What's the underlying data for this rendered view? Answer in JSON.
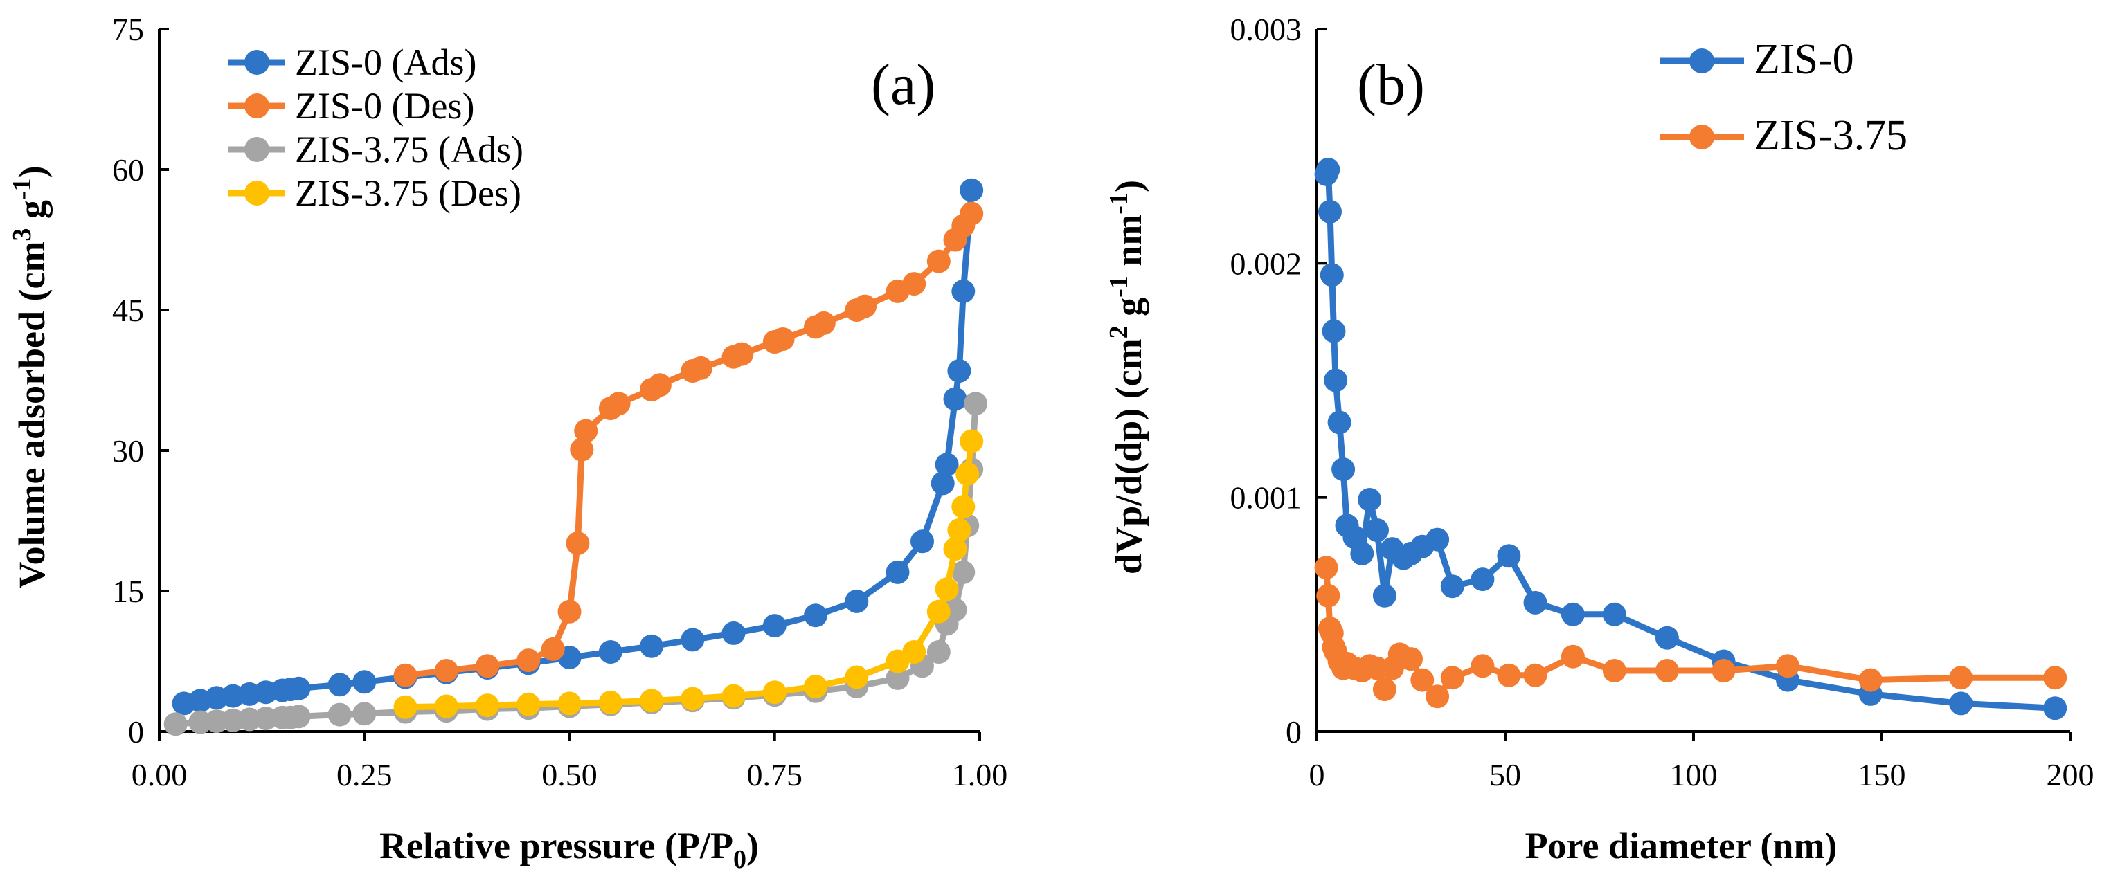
{
  "chart_data": [
    {
      "type": "line",
      "panel_label": "(a)",
      "xlabel": {
        "main": "Relative pressure (P/P",
        "sub": "0",
        "end": ")"
      },
      "ylabel": {
        "main": "Volume adsorbed (cm",
        "sup1": "3",
        "mid": " g",
        "sup2": "-1",
        "end": ")"
      },
      "xlim": [
        0,
        1
      ],
      "ylim": [
        0,
        75
      ],
      "xticks": [
        "0.00",
        "0.25",
        "0.50",
        "0.75",
        "1.00"
      ],
      "yticks": [
        "0",
        "15",
        "30",
        "45",
        "60",
        "75"
      ],
      "legend_position": "top-left",
      "series": [
        {
          "name": "ZIS-0 (Ads)",
          "color": "#2e75c8",
          "x": [
            0.03,
            0.05,
            0.07,
            0.09,
            0.11,
            0.13,
            0.15,
            0.16,
            0.17,
            0.22,
            0.25,
            0.3,
            0.35,
            0.4,
            0.45,
            0.5,
            0.55,
            0.6,
            0.65,
            0.7,
            0.75,
            0.8,
            0.85,
            0.9,
            0.93,
            0.955,
            0.96,
            0.97,
            0.975,
            0.98,
            0.99
          ],
          "y": [
            3.0,
            3.3,
            3.6,
            3.8,
            4.0,
            4.2,
            4.4,
            4.5,
            4.6,
            5.0,
            5.3,
            5.8,
            6.3,
            6.8,
            7.3,
            7.9,
            8.5,
            9.1,
            9.8,
            10.5,
            11.3,
            12.4,
            13.9,
            17.0,
            20.3,
            26.5,
            28.5,
            35.5,
            38.5,
            47.0,
            57.8
          ]
        },
        {
          "name": "ZIS-0 (Des)",
          "color": "#f47c30",
          "x": [
            0.3,
            0.35,
            0.4,
            0.45,
            0.48,
            0.5,
            0.51,
            0.515,
            0.52,
            0.55,
            0.56,
            0.6,
            0.61,
            0.65,
            0.66,
            0.7,
            0.71,
            0.75,
            0.76,
            0.8,
            0.81,
            0.85,
            0.86,
            0.9,
            0.92,
            0.95,
            0.97,
            0.98,
            0.99
          ],
          "y": [
            6.0,
            6.5,
            7.0,
            7.6,
            8.8,
            12.8,
            20.1,
            30.1,
            32.1,
            34.5,
            35.0,
            36.5,
            37.0,
            38.5,
            38.8,
            40.0,
            40.3,
            41.6,
            41.9,
            43.2,
            43.6,
            45.0,
            45.4,
            47.0,
            47.8,
            50.2,
            52.5,
            54.0,
            55.3
          ]
        },
        {
          "name": "ZIS-3.75 (Ads)",
          "color": "#a5a5a5",
          "x": [
            0.02,
            0.05,
            0.07,
            0.09,
            0.11,
            0.13,
            0.15,
            0.16,
            0.17,
            0.22,
            0.25,
            0.3,
            0.35,
            0.4,
            0.45,
            0.5,
            0.55,
            0.6,
            0.65,
            0.7,
            0.75,
            0.8,
            0.85,
            0.9,
            0.93,
            0.95,
            0.96,
            0.97,
            0.98,
            0.985,
            0.99,
            0.995
          ],
          "y": [
            0.8,
            1.0,
            1.1,
            1.2,
            1.3,
            1.4,
            1.5,
            1.5,
            1.6,
            1.8,
            1.9,
            2.1,
            2.2,
            2.4,
            2.5,
            2.7,
            2.9,
            3.1,
            3.3,
            3.6,
            3.9,
            4.3,
            4.8,
            5.7,
            7.0,
            8.5,
            11.5,
            13.0,
            17.0,
            22.0,
            28.0,
            35.0
          ]
        },
        {
          "name": "ZIS-3.75 (Des)",
          "color": "#ffc000",
          "x": [
            0.3,
            0.35,
            0.4,
            0.45,
            0.5,
            0.55,
            0.6,
            0.65,
            0.7,
            0.75,
            0.8,
            0.85,
            0.9,
            0.92,
            0.95,
            0.96,
            0.97,
            0.975,
            0.98,
            0.985,
            0.99
          ],
          "y": [
            2.6,
            2.7,
            2.8,
            2.9,
            3.0,
            3.1,
            3.3,
            3.5,
            3.8,
            4.2,
            4.8,
            5.8,
            7.5,
            8.5,
            12.8,
            15.2,
            19.5,
            21.5,
            24.0,
            27.5,
            31.0
          ]
        }
      ]
    },
    {
      "type": "line",
      "panel_label": "(b)",
      "xlabel": {
        "main": "Pore diameter (nm)"
      },
      "ylabel": {
        "main": "dVp/d(dp) (cm",
        "sup1": "2",
        "mid": " g",
        "sup2": "-1",
        "mid2": " nm",
        "sup3": "-1",
        "end": ")"
      },
      "xlim": [
        0,
        200
      ],
      "ylim": [
        0,
        0.003
      ],
      "xticks": [
        "0",
        "50",
        "100",
        "150",
        "200"
      ],
      "yticks": [
        "0",
        "0.001",
        "0.002",
        "0.003"
      ],
      "legend_position": "top-right",
      "series": [
        {
          "name": "ZIS-0",
          "color": "#2e75c8",
          "x": [
            2.5,
            3.0,
            3.5,
            4.0,
            4.5,
            5.0,
            6.0,
            7.0,
            8.0,
            10.0,
            12.0,
            14.0,
            16.0,
            18.0,
            20.0,
            23.0,
            25.0,
            28.0,
            32.0,
            36.0,
            44.0,
            51.0,
            58.0,
            68.0,
            79.0,
            93.0,
            108.0,
            125.0,
            147.0,
            171.0,
            196.0
          ],
          "y": [
            0.00238,
            0.0024,
            0.00222,
            0.00195,
            0.00171,
            0.0015,
            0.00132,
            0.00112,
            0.00088,
            0.00083,
            0.00076,
            0.00099,
            0.00086,
            0.00058,
            0.00078,
            0.00074,
            0.00076,
            0.00079,
            0.00082,
            0.00062,
            0.00065,
            0.00075,
            0.00055,
            0.0005,
            0.0005,
            0.0004,
            0.0003,
            0.00022,
            0.00016,
            0.00012,
            0.0001
          ]
        },
        {
          "name": "ZIS-3.75",
          "color": "#f47c30",
          "x": [
            2.5,
            3.0,
            3.5,
            4.0,
            4.5,
            5.0,
            6.0,
            7.0,
            8.0,
            10.0,
            12.0,
            14.0,
            16.0,
            18.0,
            20.0,
            22.0,
            25.0,
            28.0,
            32.0,
            36.0,
            44.0,
            51.0,
            58.0,
            68.0,
            79.0,
            93.0,
            108.0,
            125.0,
            147.0,
            171.0,
            196.0
          ],
          "y": [
            0.0007,
            0.00058,
            0.00044,
            0.00042,
            0.00036,
            0.00034,
            0.0003,
            0.00027,
            0.00029,
            0.00027,
            0.00026,
            0.00028,
            0.00027,
            0.00018,
            0.00027,
            0.00033,
            0.00031,
            0.00022,
            0.00015,
            0.00023,
            0.00028,
            0.00024,
            0.00024,
            0.00032,
            0.00026,
            0.00026,
            0.00026,
            0.00028,
            0.00022,
            0.00023,
            0.00023
          ]
        }
      ]
    }
  ]
}
